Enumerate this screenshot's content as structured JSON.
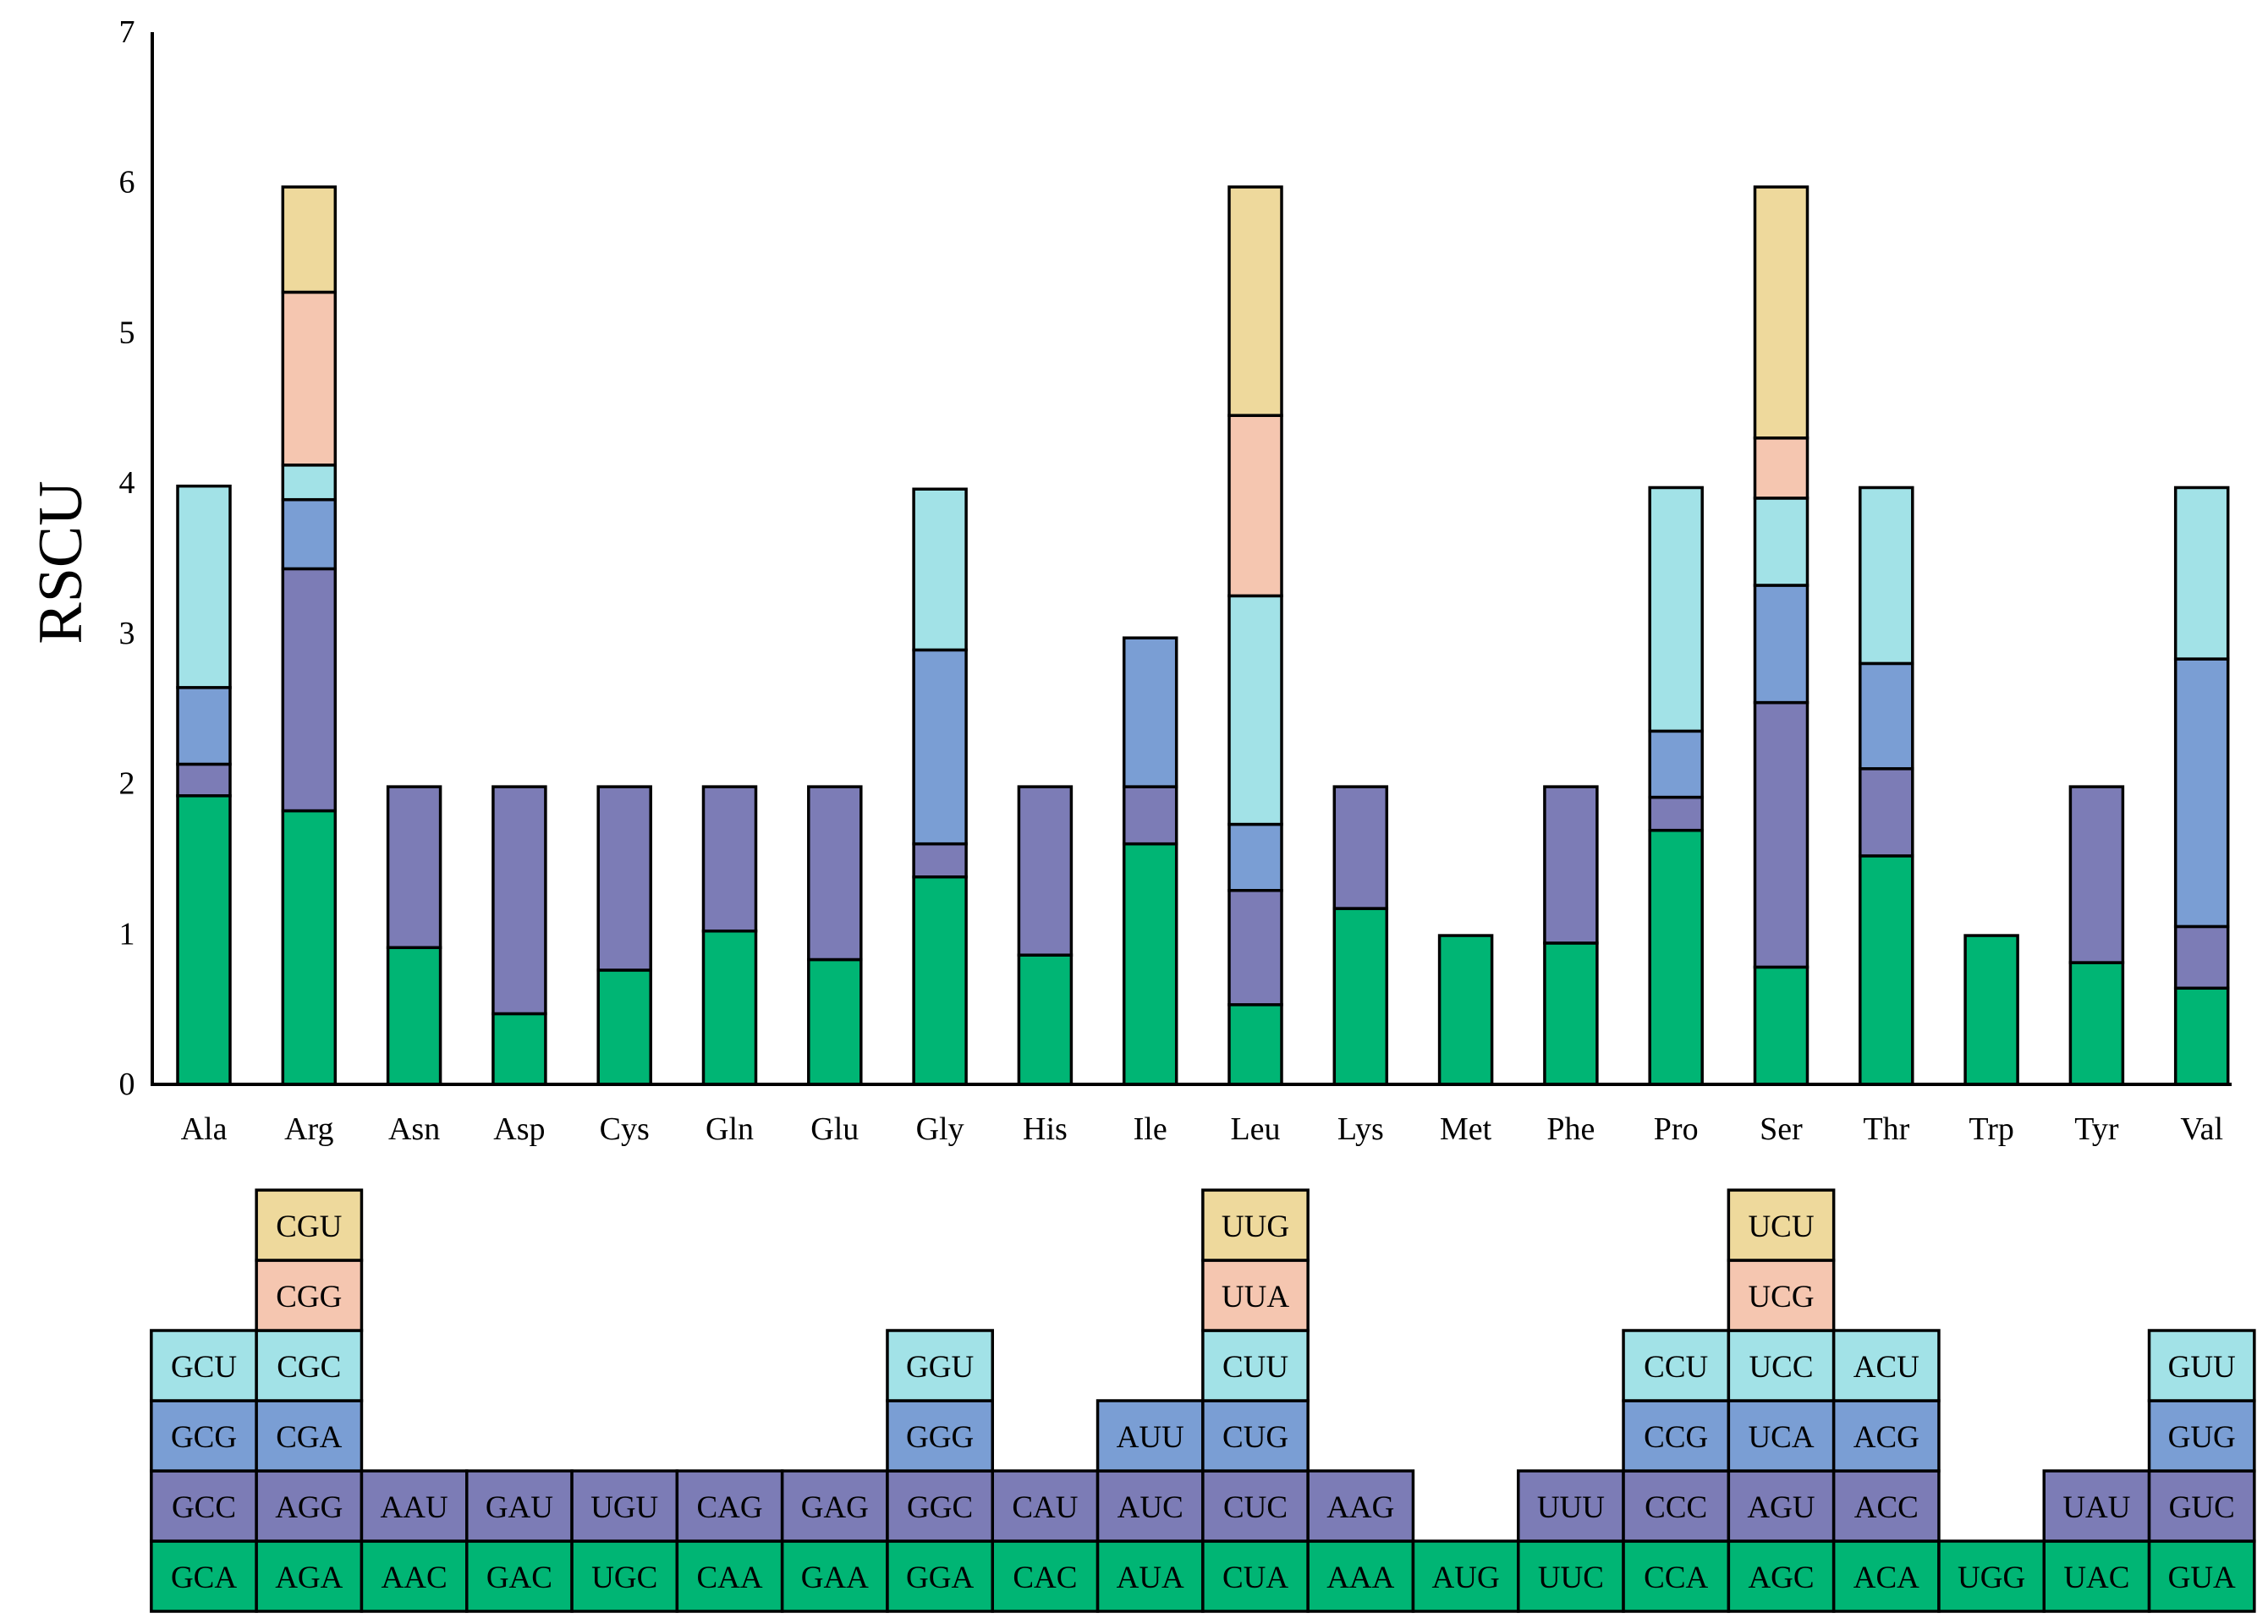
{
  "chart_data": {
    "type": "bar",
    "stacked": true,
    "title": "",
    "xlabel": "",
    "ylabel": "RSCU",
    "ylim": [
      0,
      7
    ],
    "yticks": [
      "0",
      "1",
      "2",
      "3",
      "4",
      "5",
      "6",
      "7"
    ],
    "categories": [
      "Ala",
      "Arg",
      "Asn",
      "Asp",
      "Cys",
      "Gln",
      "Glu",
      "Gly",
      "His",
      "Ile",
      "Leu",
      "Lys",
      "Met",
      "Phe",
      "Pro",
      "Ser",
      "Thr",
      "Trp",
      "Tyr",
      "Val"
    ],
    "layer_colors": [
      "#00b574",
      "#7c7cb6",
      "#7a9ed4",
      "#a2e2e7",
      "#f5c6b0",
      "#eed99c"
    ],
    "bars": [
      {
        "aa": "Ala",
        "segments": [
          {
            "codon": "GCA",
            "value": 1.92
          },
          {
            "codon": "GCC",
            "value": 0.21
          },
          {
            "codon": "GCG",
            "value": 0.51
          },
          {
            "codon": "GCU",
            "value": 1.34
          }
        ]
      },
      {
        "aa": "Arg",
        "segments": [
          {
            "codon": "AGA",
            "value": 1.82
          },
          {
            "codon": "AGG",
            "value": 1.61
          },
          {
            "codon": "CGA",
            "value": 0.46
          },
          {
            "codon": "CGC",
            "value": 0.23
          },
          {
            "codon": "CGG",
            "value": 1.15
          },
          {
            "codon": "CGU",
            "value": 0.7
          }
        ]
      },
      {
        "aa": "Asn",
        "segments": [
          {
            "codon": "AAC",
            "value": 0.91
          },
          {
            "codon": "AAU",
            "value": 1.07
          }
        ]
      },
      {
        "aa": "Asp",
        "segments": [
          {
            "codon": "GAC",
            "value": 0.47
          },
          {
            "codon": "GAU",
            "value": 1.51
          }
        ]
      },
      {
        "aa": "Cys",
        "segments": [
          {
            "codon": "UGC",
            "value": 0.76
          },
          {
            "codon": "UGU",
            "value": 1.22
          }
        ]
      },
      {
        "aa": "Gln",
        "segments": [
          {
            "codon": "CAA",
            "value": 1.02
          },
          {
            "codon": "CAG",
            "value": 0.96
          }
        ]
      },
      {
        "aa": "Glu",
        "segments": [
          {
            "codon": "GAA",
            "value": 0.83
          },
          {
            "codon": "GAG",
            "value": 1.15
          }
        ]
      },
      {
        "aa": "Gly",
        "segments": [
          {
            "codon": "GGA",
            "value": 1.38
          },
          {
            "codon": "GGC",
            "value": 0.22
          },
          {
            "codon": "GGG",
            "value": 1.29
          },
          {
            "codon": "GGU",
            "value": 1.07
          }
        ]
      },
      {
        "aa": "His",
        "segments": [
          {
            "codon": "CAC",
            "value": 0.86
          },
          {
            "codon": "CAU",
            "value": 1.12
          }
        ]
      },
      {
        "aa": "Ile",
        "segments": [
          {
            "codon": "AUA",
            "value": 1.6
          },
          {
            "codon": "AUC",
            "value": 0.38
          },
          {
            "codon": "AUU",
            "value": 0.99
          }
        ]
      },
      {
        "aa": "Leu",
        "segments": [
          {
            "codon": "CUA",
            "value": 0.53
          },
          {
            "codon": "CUC",
            "value": 0.76
          },
          {
            "codon": "CUG",
            "value": 0.44
          },
          {
            "codon": "CUU",
            "value": 1.52
          },
          {
            "codon": "UUA",
            "value": 1.2
          },
          {
            "codon": "UUG",
            "value": 1.52
          }
        ]
      },
      {
        "aa": "Lys",
        "segments": [
          {
            "codon": "AAA",
            "value": 1.17
          },
          {
            "codon": "AAG",
            "value": 0.81
          }
        ]
      },
      {
        "aa": "Met",
        "segments": [
          {
            "codon": "AUG",
            "value": 0.99
          }
        ]
      },
      {
        "aa": "Phe",
        "segments": [
          {
            "codon": "UUC",
            "value": 0.94
          },
          {
            "codon": "UUU",
            "value": 1.04
          }
        ]
      },
      {
        "aa": "Pro",
        "segments": [
          {
            "codon": "CCA",
            "value": 1.69
          },
          {
            "codon": "CCC",
            "value": 0.22
          },
          {
            "codon": "CCG",
            "value": 0.44
          },
          {
            "codon": "CCU",
            "value": 1.62
          }
        ]
      },
      {
        "aa": "Ser",
        "segments": [
          {
            "codon": "AGC",
            "value": 0.78
          },
          {
            "codon": "AGU",
            "value": 1.76
          },
          {
            "codon": "UCA",
            "value": 0.78
          },
          {
            "codon": "UCC",
            "value": 0.58
          },
          {
            "codon": "UCG",
            "value": 0.4
          },
          {
            "codon": "UCU",
            "value": 1.67
          }
        ]
      },
      {
        "aa": "Thr",
        "segments": [
          {
            "codon": "ACA",
            "value": 1.52
          },
          {
            "codon": "ACC",
            "value": 0.58
          },
          {
            "codon": "ACG",
            "value": 0.7
          },
          {
            "codon": "ACU",
            "value": 1.17
          }
        ]
      },
      {
        "aa": "Trp",
        "segments": [
          {
            "codon": "UGG",
            "value": 0.99
          }
        ]
      },
      {
        "aa": "Tyr",
        "segments": [
          {
            "codon": "UAC",
            "value": 0.81
          },
          {
            "codon": "UAU",
            "value": 1.17
          }
        ]
      },
      {
        "aa": "Val",
        "segments": [
          {
            "codon": "GUA",
            "value": 0.64
          },
          {
            "codon": "GUC",
            "value": 0.41
          },
          {
            "codon": "GUG",
            "value": 1.78
          },
          {
            "codon": "GUU",
            "value": 1.14
          }
        ]
      }
    ]
  }
}
